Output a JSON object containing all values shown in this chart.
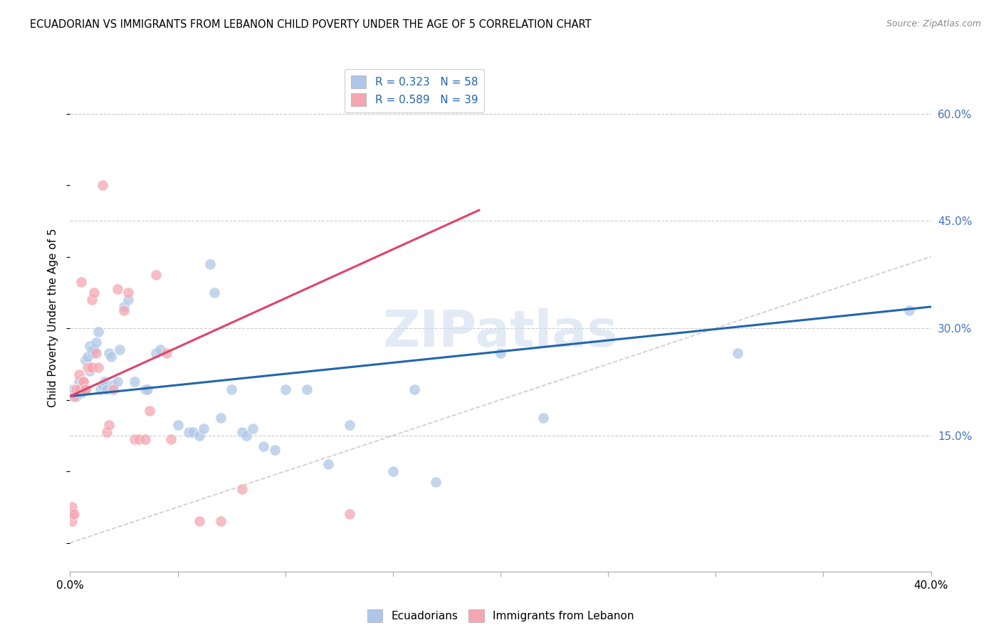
{
  "title": "ECUADORIAN VS IMMIGRANTS FROM LEBANON CHILD POVERTY UNDER THE AGE OF 5 CORRELATION CHART",
  "source": "Source: ZipAtlas.com",
  "ylabel": "Child Poverty Under the Age of 5",
  "x_min": 0.0,
  "x_max": 0.4,
  "y_min": -0.04,
  "y_max": 0.67,
  "x_ticks": [
    0.0,
    0.05,
    0.1,
    0.15,
    0.2,
    0.25,
    0.3,
    0.35,
    0.4
  ],
  "y_ticks_right": [
    0.15,
    0.3,
    0.45,
    0.6
  ],
  "y_tick_labels_right": [
    "15.0%",
    "30.0%",
    "45.0%",
    "60.0%"
  ],
  "legend_r1": "R = 0.323   N = 58",
  "legend_r2": "R = 0.589   N = 39",
  "color_blue": "#aec7e8",
  "color_pink": "#f4a7b0",
  "color_blue_line": "#2166ac",
  "color_pink_line": "#e0436a",
  "color_diag": "#cccccc",
  "watermark": "ZIPatlas",
  "ecuadorians": [
    [
      0.001,
      0.215
    ],
    [
      0.002,
      0.215
    ],
    [
      0.003,
      0.215
    ],
    [
      0.003,
      0.205
    ],
    [
      0.004,
      0.225
    ],
    [
      0.005,
      0.21
    ],
    [
      0.006,
      0.22
    ],
    [
      0.007,
      0.215
    ],
    [
      0.007,
      0.255
    ],
    [
      0.008,
      0.26
    ],
    [
      0.009,
      0.24
    ],
    [
      0.009,
      0.275
    ],
    [
      0.01,
      0.265
    ],
    [
      0.01,
      0.27
    ],
    [
      0.011,
      0.27
    ],
    [
      0.012,
      0.28
    ],
    [
      0.013,
      0.295
    ],
    [
      0.014,
      0.215
    ],
    [
      0.015,
      0.22
    ],
    [
      0.016,
      0.225
    ],
    [
      0.017,
      0.215
    ],
    [
      0.018,
      0.265
    ],
    [
      0.019,
      0.26
    ],
    [
      0.02,
      0.22
    ],
    [
      0.022,
      0.225
    ],
    [
      0.023,
      0.27
    ],
    [
      0.025,
      0.33
    ],
    [
      0.027,
      0.34
    ],
    [
      0.03,
      0.225
    ],
    [
      0.035,
      0.215
    ],
    [
      0.036,
      0.215
    ],
    [
      0.04,
      0.265
    ],
    [
      0.042,
      0.27
    ],
    [
      0.05,
      0.165
    ],
    [
      0.055,
      0.155
    ],
    [
      0.057,
      0.155
    ],
    [
      0.06,
      0.15
    ],
    [
      0.062,
      0.16
    ],
    [
      0.065,
      0.39
    ],
    [
      0.067,
      0.35
    ],
    [
      0.07,
      0.175
    ],
    [
      0.075,
      0.215
    ],
    [
      0.08,
      0.155
    ],
    [
      0.082,
      0.15
    ],
    [
      0.085,
      0.16
    ],
    [
      0.09,
      0.135
    ],
    [
      0.095,
      0.13
    ],
    [
      0.1,
      0.215
    ],
    [
      0.11,
      0.215
    ],
    [
      0.12,
      0.11
    ],
    [
      0.13,
      0.165
    ],
    [
      0.15,
      0.1
    ],
    [
      0.16,
      0.215
    ],
    [
      0.17,
      0.085
    ],
    [
      0.2,
      0.265
    ],
    [
      0.22,
      0.175
    ],
    [
      0.31,
      0.265
    ],
    [
      0.39,
      0.325
    ]
  ],
  "lebanon": [
    [
      0.001,
      0.03
    ],
    [
      0.001,
      0.04
    ],
    [
      0.001,
      0.05
    ],
    [
      0.002,
      0.04
    ],
    [
      0.002,
      0.205
    ],
    [
      0.003,
      0.215
    ],
    [
      0.003,
      0.215
    ],
    [
      0.004,
      0.215
    ],
    [
      0.004,
      0.235
    ],
    [
      0.005,
      0.365
    ],
    [
      0.006,
      0.225
    ],
    [
      0.006,
      0.225
    ],
    [
      0.007,
      0.215
    ],
    [
      0.007,
      0.215
    ],
    [
      0.008,
      0.245
    ],
    [
      0.009,
      0.245
    ],
    [
      0.01,
      0.245
    ],
    [
      0.01,
      0.34
    ],
    [
      0.011,
      0.35
    ],
    [
      0.012,
      0.265
    ],
    [
      0.013,
      0.245
    ],
    [
      0.015,
      0.5
    ],
    [
      0.017,
      0.155
    ],
    [
      0.018,
      0.165
    ],
    [
      0.02,
      0.215
    ],
    [
      0.022,
      0.355
    ],
    [
      0.025,
      0.325
    ],
    [
      0.027,
      0.35
    ],
    [
      0.03,
      0.145
    ],
    [
      0.032,
      0.145
    ],
    [
      0.035,
      0.145
    ],
    [
      0.037,
      0.185
    ],
    [
      0.04,
      0.375
    ],
    [
      0.045,
      0.265
    ],
    [
      0.047,
      0.145
    ],
    [
      0.06,
      0.03
    ],
    [
      0.07,
      0.03
    ],
    [
      0.08,
      0.075
    ],
    [
      0.13,
      0.04
    ]
  ],
  "blue_line_x": [
    0.0,
    0.4
  ],
  "blue_line_y": [
    0.205,
    0.33
  ],
  "pink_line_x": [
    0.0,
    0.19
  ],
  "pink_line_y": [
    0.205,
    0.465
  ],
  "diag_line_x": [
    0.0,
    0.4
  ],
  "diag_line_y": [
    0.0,
    0.4
  ]
}
